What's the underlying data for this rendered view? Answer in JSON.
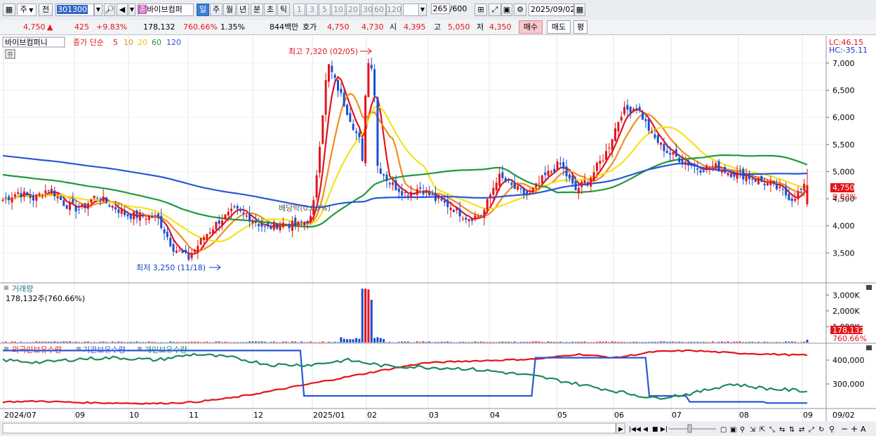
{
  "toolbar": {
    "market": "주",
    "prev_label": "전",
    "code": "301300",
    "stock_name": "바이브컴퍼",
    "stock_badge": "종",
    "periods": [
      "일",
      "주",
      "월",
      "년",
      "분",
      "초",
      "틱"
    ],
    "active_period": "일",
    "intervals": [
      "1",
      "3",
      "5",
      "10",
      "20",
      "30",
      "60",
      "120"
    ],
    "count": "265",
    "count_total": "/600",
    "date": "2025/09/02"
  },
  "quote": {
    "price": "4,750",
    "arrow": "▲",
    "change": "425",
    "change_pct": "+9.83%",
    "volume": "178,132",
    "volume_pct": "760.66%",
    "turnover": "1.35%",
    "amount": "844백만",
    "bid_label": "호가",
    "bid1": "4,750",
    "bid2": "4,730",
    "open_label": "시",
    "open": "4,395",
    "high_label": "고",
    "high": "5,050",
    "low_label": "저",
    "low": "4,350",
    "buy_label": "매수",
    "sell_label": "매도",
    "eval_label": "평"
  },
  "price_panel": {
    "stock_label": "바이브컴퍼니",
    "ma_prefix": "종가 단순",
    "ma": [
      {
        "period": "5",
        "color": "#e4141b"
      },
      {
        "period": "10",
        "color": "#f28c1e"
      },
      {
        "period": "20",
        "color": "#f2e21a"
      },
      {
        "period": "60",
        "color": "#1f9a3a"
      },
      {
        "period": "120",
        "color": "#2a58d8"
      }
    ],
    "lc": "LC:46.15",
    "hc": "HC:-35.11",
    "high_annotation": "최고 7,320 (02/05)",
    "low_annotation": "최저 3,250 (11/18)",
    "dividend_label": "배당락(0.00%)",
    "price_tag": "4,750",
    "pct_tag": "9.83%",
    "y_ticks": [
      "7,000",
      "6,500",
      "6,000",
      "5,500",
      "5,000",
      "4,500",
      "4,000",
      "3,500"
    ]
  },
  "volume_panel": {
    "title": "거래량",
    "subtitle": "178,132주(760.66%)",
    "y_ticks": [
      "3,000K",
      "2,000K",
      "1,000K"
    ],
    "tag_value": "178,132",
    "tag_pct": "760.66%"
  },
  "holdings_panel": {
    "legend": [
      {
        "label": "외국인보유수량",
        "color": "#e4141b"
      },
      {
        "label": "기관보유수량",
        "color": "#2a58d8"
      },
      {
        "label": "개인보유수량",
        "color": "#1f8a5a"
      }
    ],
    "y_ticks": [
      "400,000",
      "300,000"
    ]
  },
  "x_axis": {
    "labels": [
      "2024/07",
      "09",
      "10",
      "11",
      "12",
      "2025/01",
      "02",
      "03",
      "04",
      "05",
      "06",
      "07",
      "08",
      "09"
    ],
    "right_label": "09/02"
  },
  "chart_data": [
    {
      "type": "candlestick",
      "title": "바이브컴퍼니",
      "ylim": [
        3000,
        7400
      ],
      "x_months": [
        "2024/07",
        "09",
        "10",
        "11",
        "12",
        "2025/01",
        "02",
        "03",
        "04",
        "05",
        "06",
        "07",
        "08",
        "09"
      ],
      "series_close": [
        4480,
        4620,
        4500,
        4700,
        4400,
        4300,
        4550,
        4380,
        4200,
        4180,
        4150,
        3600,
        3400,
        3800,
        4100,
        4280,
        4150,
        3950,
        4050,
        4000,
        4150,
        7000,
        6300,
        5600,
        5200,
        4800,
        4600,
        4700,
        4480,
        4350,
        4150,
        4200,
        4920,
        4700,
        4550,
        4900,
        5150,
        4650,
        4900,
        5350,
        6100,
        6200,
        5650,
        5350,
        5200,
        5050,
        5100,
        4980,
        4920,
        4820,
        4700,
        4500,
        4750
      ],
      "last": {
        "close": 4750,
        "open": 4395,
        "high": 5050,
        "low": 4350
      },
      "annotations": {
        "high": {
          "value": 7320,
          "date": "02/05"
        },
        "low": {
          "value": 3250,
          "date": "11/18"
        }
      },
      "moving_averages": [
        5,
        10,
        20,
        60,
        120
      ]
    },
    {
      "type": "bar",
      "title": "거래량",
      "ylim": [
        0,
        3500
      ],
      "unit": "K",
      "last_value": 178.132,
      "spike_values": [
        3400,
        3400,
        3350,
        2700
      ],
      "base_level": 60
    },
    {
      "type": "line",
      "title": "보유수량",
      "ylim": [
        200000,
        450000
      ],
      "series": [
        {
          "name": "외국인보유수량",
          "values": [
            225000,
            228000,
            222000,
            220000,
            218000,
            224000,
            242000,
            270000,
            300000,
            330000,
            360000,
            388000,
            395000,
            400000,
            405000,
            425000,
            410000,
            435000,
            440000,
            430000,
            425000,
            420000
          ]
        },
        {
          "name": "기관보유수량",
          "values": [
            440000,
            440000,
            440000,
            440000,
            440000,
            440000,
            440000,
            440000,
            250000,
            250000,
            250000,
            250000,
            250000,
            250000,
            410000,
            410000,
            410000,
            250000,
            225000,
            225000,
            220000,
            220000
          ]
        },
        {
          "name": "개인보유수량",
          "values": [
            400000,
            390000,
            405000,
            410000,
            400000,
            425000,
            410000,
            380000,
            380000,
            400000,
            375000,
            370000,
            365000,
            350000,
            330000,
            300000,
            270000,
            240000,
            260000,
            300000,
            280000,
            270000
          ]
        }
      ]
    }
  ]
}
